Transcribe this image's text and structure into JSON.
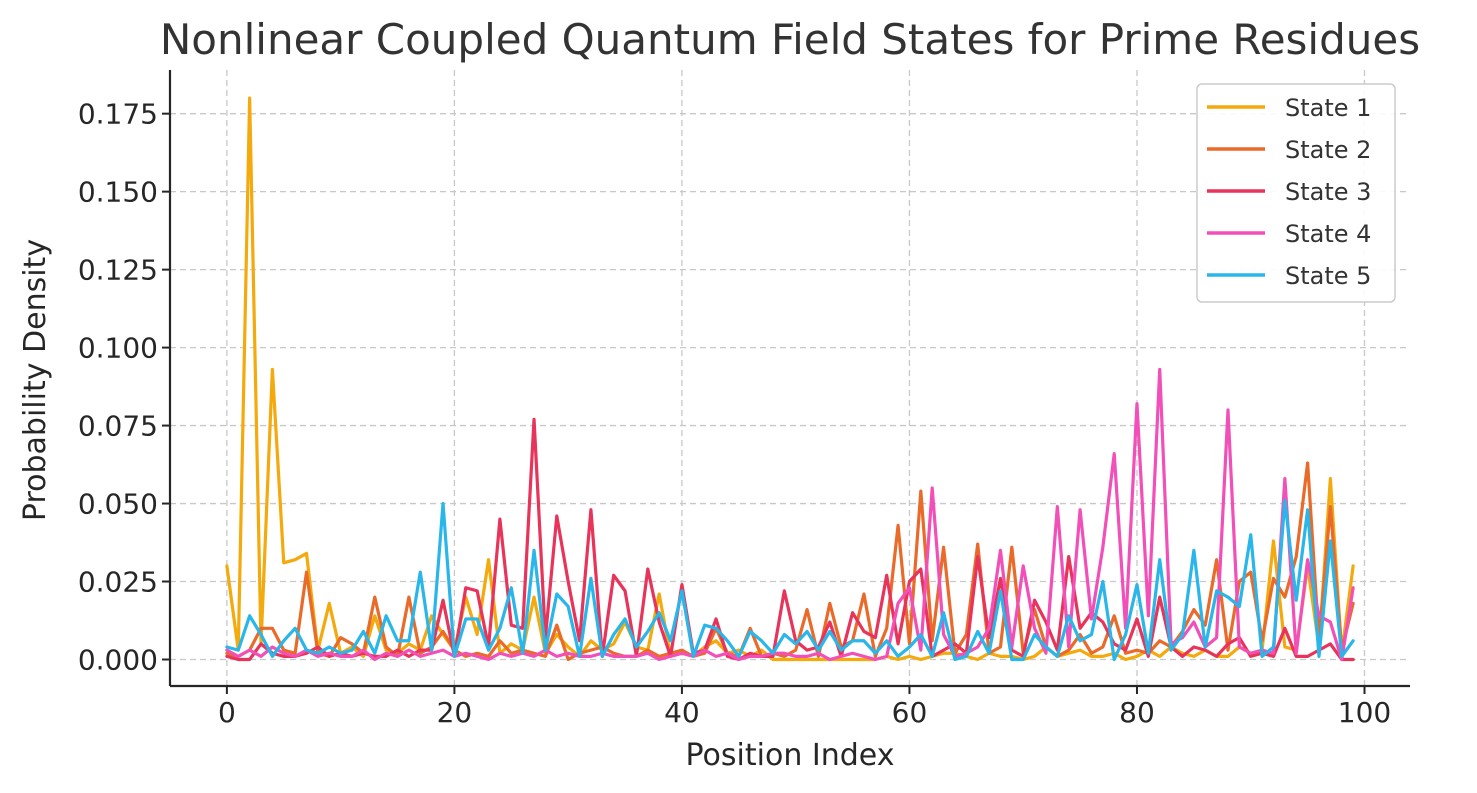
{
  "chart_data": {
    "type": "line",
    "title": "Nonlinear Coupled Quantum Field States for Prime Residues",
    "xlabel": "Position Index",
    "ylabel": "Probability Density",
    "xlim": [
      -5,
      104
    ],
    "ylim": [
      -0.0085,
      0.189
    ],
    "grid": true,
    "legend_position": "top-right",
    "xticks": [
      0,
      20,
      40,
      60,
      80,
      100
    ],
    "xtick_labels": [
      "0",
      "20",
      "40",
      "60",
      "80",
      "100"
    ],
    "yticks": [
      0.0,
      0.025,
      0.05,
      0.075,
      0.1,
      0.125,
      0.15,
      0.175
    ],
    "ytick_labels": [
      "0.000",
      "0.025",
      "0.050",
      "0.075",
      "0.100",
      "0.125",
      "0.150",
      "0.175"
    ],
    "x": [
      0,
      1,
      2,
      3,
      4,
      5,
      6,
      7,
      8,
      9,
      10,
      11,
      12,
      13,
      14,
      15,
      16,
      17,
      18,
      19,
      20,
      21,
      22,
      23,
      24,
      25,
      26,
      27,
      28,
      29,
      30,
      31,
      32,
      33,
      34,
      35,
      36,
      37,
      38,
      39,
      40,
      41,
      42,
      43,
      44,
      45,
      46,
      47,
      48,
      49,
      50,
      51,
      52,
      53,
      54,
      55,
      56,
      57,
      58,
      59,
      60,
      61,
      62,
      63,
      64,
      65,
      66,
      67,
      68,
      69,
      70,
      71,
      72,
      73,
      74,
      75,
      76,
      77,
      78,
      79,
      80,
      81,
      82,
      83,
      84,
      85,
      86,
      87,
      88,
      89,
      90,
      91,
      92,
      93,
      94,
      95,
      96,
      97,
      98,
      99
    ],
    "series": [
      {
        "name": "State 1",
        "color": "#F4A90C",
        "values": [
          0.03,
          0.003,
          0.18,
          0.005,
          0.093,
          0.031,
          0.032,
          0.034,
          0.003,
          0.018,
          0.002,
          0.004,
          0.001,
          0.014,
          0.003,
          0.002,
          0.005,
          0.003,
          0.014,
          0.008,
          0.003,
          0.02,
          0.008,
          0.032,
          0.002,
          0.005,
          0.003,
          0.02,
          0.002,
          0.008,
          0.004,
          0.001,
          0.006,
          0.003,
          0.005,
          0.012,
          0.004,
          0.003,
          0.021,
          0.001,
          0.002,
          0.001,
          0.004,
          0.006,
          0.002,
          0.003,
          0.001,
          0.003,
          0.0,
          0.0,
          0.0,
          0.0,
          0.0,
          0.0,
          0.0,
          0.0,
          0.0,
          0.0,
          0.001,
          0.0,
          0.001,
          0.0,
          0.001,
          0.002,
          0.002,
          0.001,
          0.0,
          0.002,
          0.001,
          0.001,
          0.0,
          0.001,
          0.004,
          0.001,
          0.002,
          0.003,
          0.001,
          0.001,
          0.002,
          0.0,
          0.001,
          0.003,
          0.001,
          0.004,
          0.002,
          0.001,
          0.003,
          0.001,
          0.001,
          0.004,
          0.002,
          0.003,
          0.038,
          0.004,
          0.003,
          0.03,
          0.004,
          0.058,
          0.002,
          0.03
        ]
      },
      {
        "name": "State 2",
        "color": "#EA6A2A",
        "values": [
          0.002,
          0.001,
          0.003,
          0.01,
          0.01,
          0.003,
          0.002,
          0.028,
          0.002,
          0.001,
          0.007,
          0.005,
          0.002,
          0.02,
          0.004,
          0.001,
          0.02,
          0.002,
          0.004,
          0.009,
          0.003,
          0.001,
          0.002,
          0.001,
          0.006,
          0.002,
          0.003,
          0.002,
          0.001,
          0.011,
          0.0,
          0.002,
          0.003,
          0.004,
          0.002,
          0.001,
          0.001,
          0.003,
          0.001,
          0.002,
          0.003,
          0.001,
          0.002,
          0.01,
          0.002,
          0.001,
          0.01,
          0.001,
          0.002,
          0.001,
          0.003,
          0.016,
          0.001,
          0.018,
          0.004,
          0.006,
          0.021,
          0.001,
          0.01,
          0.043,
          0.005,
          0.054,
          0.006,
          0.036,
          0.002,
          0.008,
          0.037,
          0.002,
          0.004,
          0.036,
          0.002,
          0.016,
          0.004,
          0.001,
          0.003,
          0.008,
          0.002,
          0.004,
          0.014,
          0.002,
          0.003,
          0.002,
          0.006,
          0.004,
          0.009,
          0.016,
          0.011,
          0.032,
          0.003,
          0.025,
          0.028,
          0.006,
          0.026,
          0.02,
          0.033,
          0.063,
          0.006,
          0.049,
          0.003,
          0.018
        ]
      },
      {
        "name": "State 3",
        "color": "#E8345A",
        "values": [
          0.001,
          0.0,
          0.0,
          0.005,
          0.002,
          0.001,
          0.001,
          0.002,
          0.004,
          0.001,
          0.002,
          0.001,
          0.002,
          0.001,
          0.001,
          0.003,
          0.001,
          0.003,
          0.003,
          0.019,
          0.001,
          0.023,
          0.022,
          0.004,
          0.045,
          0.011,
          0.01,
          0.077,
          0.007,
          0.046,
          0.025,
          0.006,
          0.048,
          0.001,
          0.027,
          0.022,
          0.001,
          0.029,
          0.012,
          0.001,
          0.024,
          0.002,
          0.003,
          0.013,
          0.001,
          0.0,
          0.002,
          0.001,
          0.001,
          0.022,
          0.006,
          0.003,
          0.004,
          0.012,
          0.001,
          0.015,
          0.009,
          0.007,
          0.027,
          0.005,
          0.025,
          0.029,
          0.001,
          0.003,
          0.005,
          0.002,
          0.033,
          0.007,
          0.026,
          0.003,
          0.001,
          0.019,
          0.012,
          0.003,
          0.033,
          0.01,
          0.015,
          0.012,
          0.005,
          0.003,
          0.013,
          0.001,
          0.02,
          0.004,
          0.001,
          0.004,
          0.003,
          0.001,
          0.005,
          0.007,
          0.001,
          0.002,
          0.001,
          0.01,
          0.001,
          0.001,
          0.003,
          0.005,
          0.0,
          0.0
        ]
      },
      {
        "name": "State 4",
        "color": "#F250B8",
        "values": [
          0.003,
          0.001,
          0.003,
          0.001,
          0.004,
          0.002,
          0.001,
          0.003,
          0.001,
          0.002,
          0.001,
          0.001,
          0.003,
          0.0,
          0.002,
          0.001,
          0.003,
          0.001,
          0.002,
          0.003,
          0.001,
          0.002,
          0.001,
          0.0,
          0.002,
          0.001,
          0.002,
          0.001,
          0.003,
          0.001,
          0.002,
          0.001,
          0.001,
          0.002,
          0.001,
          0.001,
          0.001,
          0.002,
          0.0,
          0.001,
          0.002,
          0.001,
          0.003,
          0.001,
          0.002,
          0.0,
          0.001,
          0.001,
          0.002,
          0.002,
          0.001,
          0.001,
          0.002,
          0.0,
          0.001,
          0.002,
          0.001,
          0.0,
          0.001,
          0.018,
          0.023,
          0.003,
          0.055,
          0.008,
          0.001,
          0.002,
          0.004,
          0.01,
          0.035,
          0.004,
          0.03,
          0.01,
          0.002,
          0.049,
          0.004,
          0.048,
          0.013,
          0.036,
          0.066,
          0.01,
          0.082,
          0.014,
          0.093,
          0.005,
          0.007,
          0.012,
          0.004,
          0.007,
          0.08,
          0.004,
          0.002,
          0.003,
          0.002,
          0.058,
          0.002,
          0.032,
          0.014,
          0.012,
          0.0,
          0.023
        ]
      },
      {
        "name": "State 5",
        "color": "#29B6EA",
        "values": [
          0.004,
          0.003,
          0.014,
          0.008,
          0.001,
          0.006,
          0.01,
          0.003,
          0.002,
          0.004,
          0.002,
          0.003,
          0.009,
          0.002,
          0.014,
          0.006,
          0.006,
          0.028,
          0.003,
          0.05,
          0.001,
          0.013,
          0.013,
          0.003,
          0.01,
          0.023,
          0.002,
          0.035,
          0.003,
          0.021,
          0.017,
          0.001,
          0.026,
          0.001,
          0.008,
          0.013,
          0.004,
          0.009,
          0.015,
          0.006,
          0.022,
          0.001,
          0.011,
          0.01,
          0.006,
          0.001,
          0.009,
          0.006,
          0.002,
          0.008,
          0.005,
          0.009,
          0.003,
          0.009,
          0.003,
          0.006,
          0.006,
          0.002,
          0.006,
          0.001,
          0.004,
          0.008,
          0.001,
          0.015,
          0.0,
          0.001,
          0.009,
          0.002,
          0.022,
          0.0,
          0.0,
          0.008,
          0.004,
          0.001,
          0.014,
          0.006,
          0.008,
          0.025,
          0.0,
          0.008,
          0.024,
          0.002,
          0.032,
          0.003,
          0.008,
          0.035,
          0.004,
          0.022,
          0.02,
          0.017,
          0.04,
          0.001,
          0.004,
          0.051,
          0.019,
          0.048,
          0.001,
          0.038,
          0.001,
          0.006
        ]
      }
    ]
  }
}
